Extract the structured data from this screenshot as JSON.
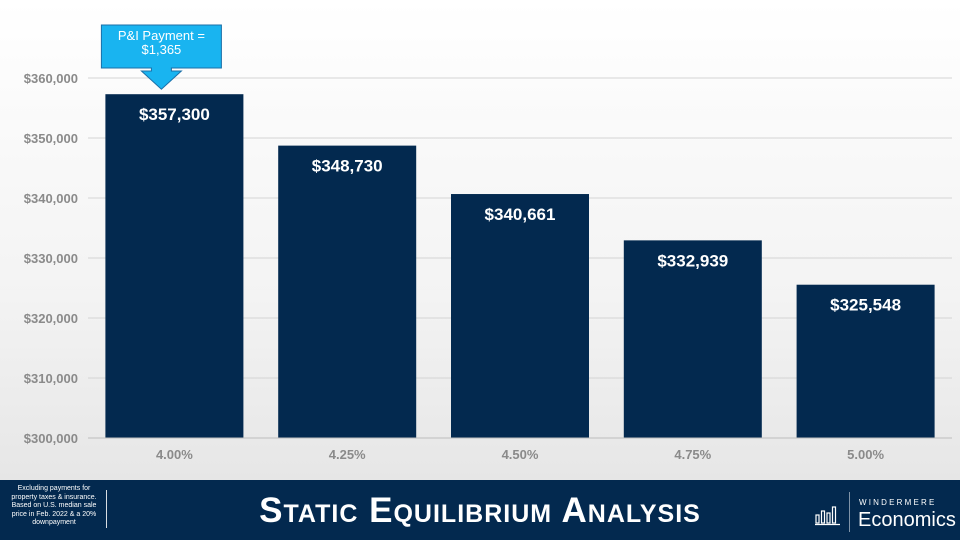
{
  "chart_data": {
    "type": "bar",
    "categories": [
      "4.00%",
      "4.25%",
      "4.50%",
      "4.75%",
      "5.00%"
    ],
    "values": [
      357300,
      348730,
      340661,
      332939,
      325548
    ],
    "data_labels": [
      "$357,300",
      "$348,730",
      "$340,661",
      "$332,939",
      "$325,548"
    ],
    "title": "",
    "xlabel": "",
    "ylabel": "",
    "ylim": [
      300000,
      360000
    ],
    "yticks": [
      300000,
      310000,
      320000,
      330000,
      340000,
      350000,
      360000
    ],
    "ytick_labels": [
      "$300,000",
      "$310,000",
      "$320,000",
      "$330,000",
      "$340,000",
      "$350,000",
      "$360,000"
    ],
    "grid": true,
    "legend": "none",
    "bar_color": "#03294f",
    "callout": {
      "lines": [
        "P&I Payment =",
        "$1,365"
      ],
      "target_category": "4.00%",
      "fill": "#19b4f0",
      "border": "#1a6fa8"
    }
  },
  "footer": {
    "title": "Static Equilibrium Analysis",
    "footnote": "Excluding payments for property taxes & insurance. Based on U.S. median sale price in Feb. 2022 & a 20% downpayment",
    "background": "#03294f"
  },
  "logo": {
    "icon": "bar-chart-logo-icon",
    "top_text": "WINDERMERE",
    "bottom_text": "Economics"
  }
}
